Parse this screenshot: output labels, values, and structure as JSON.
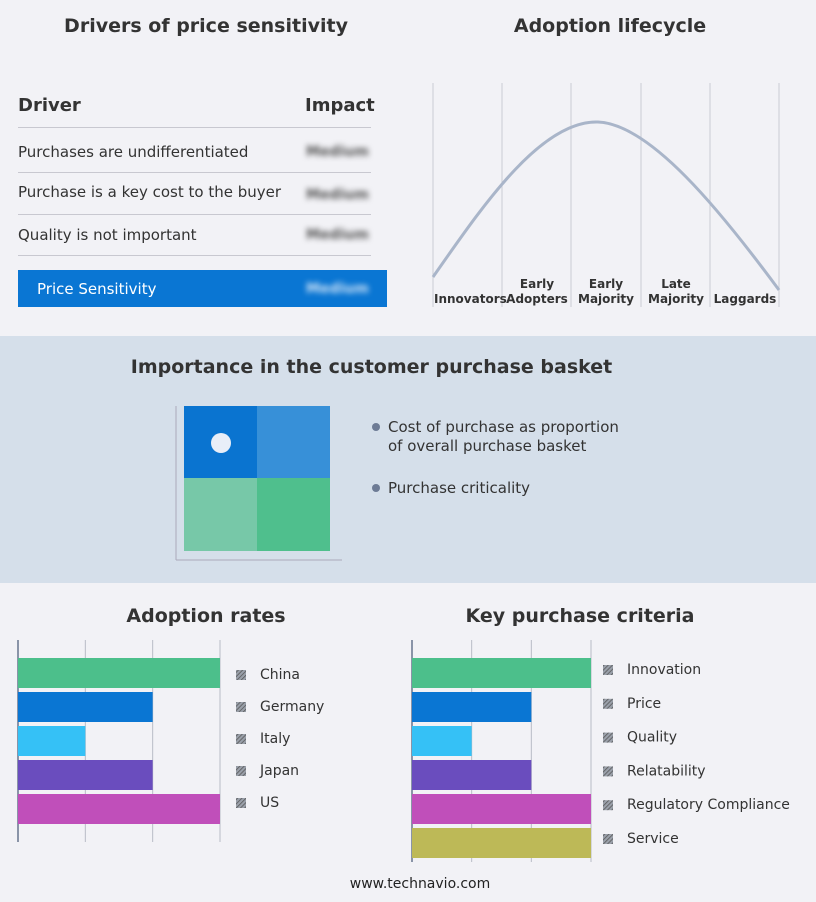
{
  "drivers": {
    "title": "Drivers of price sensitivity",
    "header": [
      "Driver",
      "Impact"
    ],
    "rows": [
      [
        "Purchases are undifferentiated",
        "Medium"
      ],
      [
        "Purchase is a key cost to the buyer",
        "Medium"
      ],
      [
        "Quality is not important",
        "Medium"
      ]
    ],
    "summary": [
      "Price Sensitivity",
      "Medium"
    ]
  },
  "lifecycle": {
    "title": "Adoption lifecycle",
    "stages": [
      "Innovators",
      "Early Adopters",
      "Early Majority",
      "Late Majority",
      "Laggards"
    ]
  },
  "basket": {
    "title": "Importance in the customer purchase basket",
    "legend": [
      "Cost of purchase as proportion of overall purchase basket",
      "Purchase criticality"
    ]
  },
  "adoption_rates": {
    "title": "Adoption rates",
    "categories": [
      "China",
      "Germany",
      "Italy",
      "Japan",
      "US"
    ],
    "values": [
      3,
      2,
      1,
      2,
      3
    ],
    "colors": [
      "#4cbf8b",
      "#0a76d3",
      "#35c1f6",
      "#6a4dbe",
      "#c04fba"
    ],
    "xlim": [
      0,
      3
    ],
    "xticks": [
      0,
      1,
      2,
      3
    ]
  },
  "key_criteria": {
    "title": "Key purchase criteria",
    "categories": [
      "Innovation",
      "Price",
      "Quality",
      "Relatability",
      "Regulatory Compliance",
      "Service"
    ],
    "values": [
      3,
      2,
      1,
      2,
      3,
      3
    ],
    "colors": [
      "#4cbf8b",
      "#0a76d3",
      "#35c1f6",
      "#6a4dbe",
      "#c04fba",
      "#bdb957"
    ],
    "xlim": [
      0,
      3
    ],
    "xticks": [
      0,
      1,
      2,
      3
    ]
  },
  "footer": "www.technavio.com"
}
